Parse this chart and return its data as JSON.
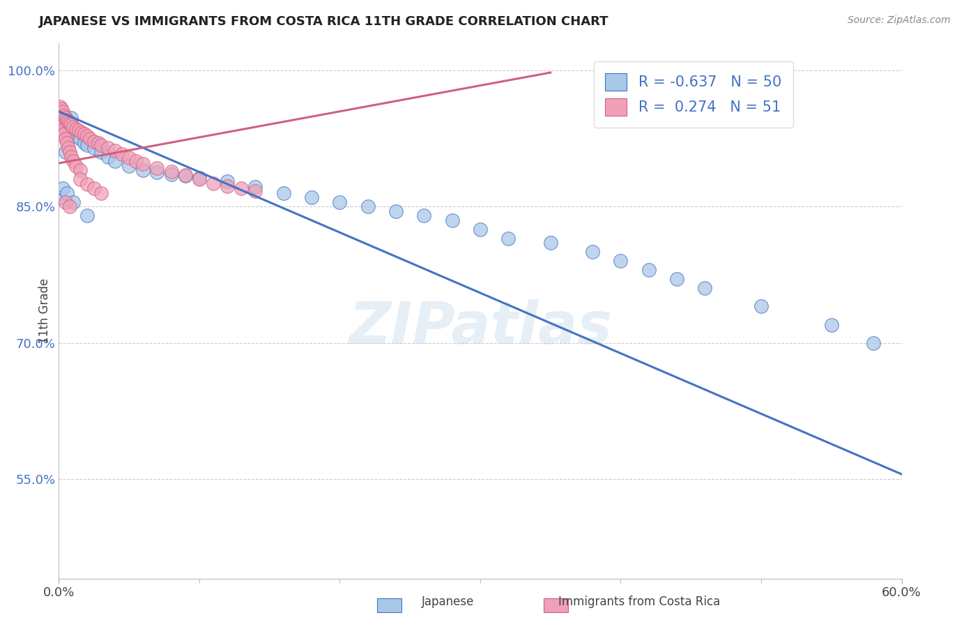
{
  "title": "JAPANESE VS IMMIGRANTS FROM COSTA RICA 11TH GRADE CORRELATION CHART",
  "source": "Source: ZipAtlas.com",
  "ylabel": "11th Grade",
  "watermark": "ZIPatlas",
  "xlim": [
    0.0,
    0.6
  ],
  "ylim": [
    0.44,
    1.03
  ],
  "yticks": [
    0.55,
    0.7,
    0.85,
    1.0
  ],
  "ytick_labels": [
    "55.0%",
    "70.0%",
    "85.0%",
    "100.0%"
  ],
  "color_blue": "#a8c8e8",
  "color_pink": "#f0a0b8",
  "color_blue_line": "#4472C4",
  "color_pink_line": "#d06080",
  "background_color": "#ffffff",
  "grid_color": "#cccccc",
  "japanese_x": [
    0.001,
    0.002,
    0.003,
    0.004,
    0.005,
    0.006,
    0.007,
    0.008,
    0.009,
    0.01,
    0.012,
    0.015,
    0.018,
    0.02,
    0.025,
    0.03,
    0.035,
    0.04,
    0.05,
    0.06,
    0.07,
    0.08,
    0.09,
    0.1,
    0.12,
    0.14,
    0.16,
    0.18,
    0.2,
    0.22,
    0.24,
    0.26,
    0.28,
    0.3,
    0.32,
    0.35,
    0.38,
    0.4,
    0.42,
    0.44,
    0.46,
    0.5,
    0.55,
    0.58,
    0.001,
    0.003,
    0.006,
    0.01,
    0.02,
    0.005
  ],
  "japanese_y": [
    0.955,
    0.945,
    0.95,
    0.94,
    0.935,
    0.942,
    0.938,
    0.93,
    0.948,
    0.936,
    0.928,
    0.925,
    0.92,
    0.918,
    0.915,
    0.91,
    0.905,
    0.9,
    0.895,
    0.89,
    0.888,
    0.886,
    0.884,
    0.882,
    0.878,
    0.872,
    0.865,
    0.86,
    0.855,
    0.85,
    0.845,
    0.84,
    0.835,
    0.825,
    0.815,
    0.81,
    0.8,
    0.79,
    0.78,
    0.77,
    0.76,
    0.74,
    0.72,
    0.7,
    0.86,
    0.87,
    0.865,
    0.855,
    0.84,
    0.91
  ],
  "costa_rica_x": [
    0.001,
    0.001,
    0.002,
    0.002,
    0.003,
    0.003,
    0.004,
    0.004,
    0.005,
    0.005,
    0.006,
    0.006,
    0.007,
    0.007,
    0.008,
    0.008,
    0.009,
    0.009,
    0.01,
    0.01,
    0.012,
    0.012,
    0.014,
    0.015,
    0.016,
    0.018,
    0.02,
    0.022,
    0.025,
    0.028,
    0.03,
    0.035,
    0.04,
    0.045,
    0.05,
    0.055,
    0.06,
    0.07,
    0.08,
    0.09,
    0.1,
    0.11,
    0.12,
    0.13,
    0.14,
    0.015,
    0.02,
    0.025,
    0.03,
    0.005,
    0.008
  ],
  "costa_rica_y": [
    0.96,
    0.94,
    0.958,
    0.945,
    0.955,
    0.935,
    0.95,
    0.93,
    0.948,
    0.925,
    0.946,
    0.92,
    0.944,
    0.915,
    0.942,
    0.91,
    0.94,
    0.905,
    0.938,
    0.9,
    0.936,
    0.895,
    0.934,
    0.89,
    0.932,
    0.93,
    0.928,
    0.925,
    0.922,
    0.92,
    0.918,
    0.915,
    0.912,
    0.908,
    0.904,
    0.9,
    0.897,
    0.893,
    0.889,
    0.885,
    0.88,
    0.876,
    0.873,
    0.87,
    0.867,
    0.88,
    0.875,
    0.87,
    0.865,
    0.855,
    0.85
  ],
  "blue_trend_x": [
    0.0,
    0.6
  ],
  "blue_trend_y": [
    0.955,
    0.555
  ],
  "pink_trend_x": [
    0.0,
    0.35
  ],
  "pink_trend_y": [
    0.898,
    0.998
  ]
}
